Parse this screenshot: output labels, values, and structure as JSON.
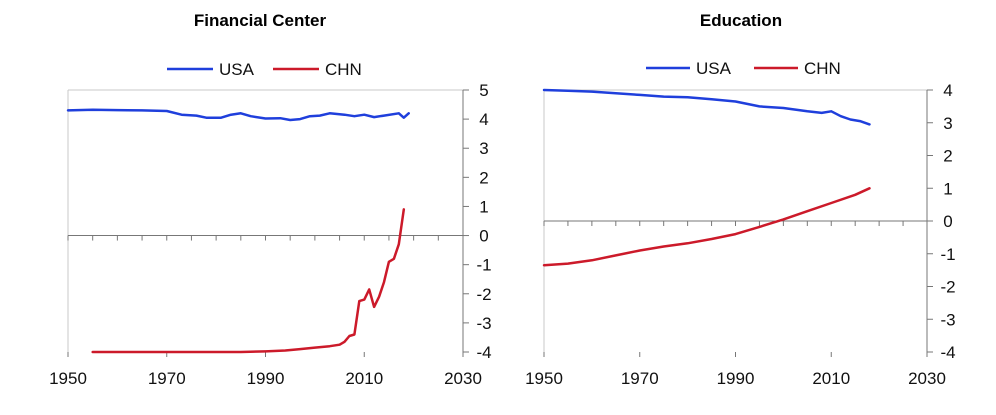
{
  "chart_data": [
    {
      "type": "line",
      "title": "Financial Center",
      "xlim": [
        1950,
        2030
      ],
      "ylim": [
        -4,
        5
      ],
      "x_ticks": [
        "1950",
        "1970",
        "1990",
        "2010",
        "2030"
      ],
      "y_ticks": [
        "5",
        "4",
        "3",
        "2",
        "1",
        "0",
        "-1",
        "-2",
        "-3",
        "-4"
      ],
      "y_axis_side": "right",
      "legend": "top-center",
      "grid": false,
      "series": [
        {
          "name": "USA",
          "color": "#1f3fdc",
          "points": [
            [
              1950,
              4.3
            ],
            [
              1955,
              4.32
            ],
            [
              1960,
              4.31
            ],
            [
              1965,
              4.3
            ],
            [
              1970,
              4.28
            ],
            [
              1973,
              4.15
            ],
            [
              1976,
              4.12
            ],
            [
              1978,
              4.05
            ],
            [
              1981,
              4.05
            ],
            [
              1983,
              4.15
            ],
            [
              1985,
              4.2
            ],
            [
              1987,
              4.1
            ],
            [
              1990,
              4.02
            ],
            [
              1993,
              4.03
            ],
            [
              1995,
              3.97
            ],
            [
              1997,
              4.0
            ],
            [
              1999,
              4.1
            ],
            [
              2001,
              4.12
            ],
            [
              2003,
              4.2
            ],
            [
              2006,
              4.15
            ],
            [
              2008,
              4.1
            ],
            [
              2010,
              4.15
            ],
            [
              2012,
              4.07
            ],
            [
              2014,
              4.12
            ],
            [
              2017,
              4.2
            ],
            [
              2018,
              4.05
            ],
            [
              2019,
              4.2
            ]
          ]
        },
        {
          "name": "CHN",
          "color": "#cc1a2a",
          "points": [
            [
              1955,
              -4.0
            ],
            [
              1960,
              -4.0
            ],
            [
              1978,
              -4.0
            ],
            [
              1985,
              -4.0
            ],
            [
              1990,
              -3.98
            ],
            [
              1994,
              -3.95
            ],
            [
              1997,
              -3.9
            ],
            [
              2000,
              -3.85
            ],
            [
              2003,
              -3.8
            ],
            [
              2005,
              -3.75
            ],
            [
              2006,
              -3.65
            ],
            [
              2007,
              -3.45
            ],
            [
              2008,
              -3.4
            ],
            [
              2009,
              -2.25
            ],
            [
              2010,
              -2.2
            ],
            [
              2011,
              -1.85
            ],
            [
              2012,
              -2.45
            ],
            [
              2013,
              -2.1
            ],
            [
              2014,
              -1.6
            ],
            [
              2015,
              -0.9
            ],
            [
              2016,
              -0.8
            ],
            [
              2017,
              -0.3
            ],
            [
              2018,
              0.9
            ]
          ]
        }
      ]
    },
    {
      "type": "line",
      "title": "Education",
      "xlim": [
        1950,
        2030
      ],
      "ylim": [
        -4,
        4
      ],
      "x_ticks": [
        "1950",
        "1970",
        "1990",
        "2010",
        "2030"
      ],
      "y_ticks": [
        "4",
        "3",
        "2",
        "1",
        "0",
        "-1",
        "-2",
        "-3",
        "-4"
      ],
      "y_axis_side": "right",
      "legend": "top-center",
      "grid": false,
      "series": [
        {
          "name": "USA",
          "color": "#1f3fdc",
          "points": [
            [
              1950,
              4.0
            ],
            [
              1955,
              3.98
            ],
            [
              1960,
              3.95
            ],
            [
              1965,
              3.9
            ],
            [
              1970,
              3.85
            ],
            [
              1975,
              3.8
            ],
            [
              1980,
              3.78
            ],
            [
              1985,
              3.72
            ],
            [
              1990,
              3.65
            ],
            [
              1995,
              3.5
            ],
            [
              2000,
              3.45
            ],
            [
              2005,
              3.35
            ],
            [
              2008,
              3.3
            ],
            [
              2010,
              3.35
            ],
            [
              2012,
              3.2
            ],
            [
              2014,
              3.1
            ],
            [
              2016,
              3.05
            ],
            [
              2018,
              2.95
            ]
          ]
        },
        {
          "name": "CHN",
          "color": "#cc1a2a",
          "points": [
            [
              1950,
              -1.35
            ],
            [
              1955,
              -1.3
            ],
            [
              1960,
              -1.2
            ],
            [
              1965,
              -1.05
            ],
            [
              1970,
              -0.9
            ],
            [
              1975,
              -0.78
            ],
            [
              1980,
              -0.68
            ],
            [
              1985,
              -0.55
            ],
            [
              1990,
              -0.4
            ],
            [
              1995,
              -0.18
            ],
            [
              2000,
              0.05
            ],
            [
              2005,
              0.3
            ],
            [
              2010,
              0.55
            ],
            [
              2015,
              0.8
            ],
            [
              2018,
              1.0
            ]
          ]
        }
      ]
    }
  ]
}
